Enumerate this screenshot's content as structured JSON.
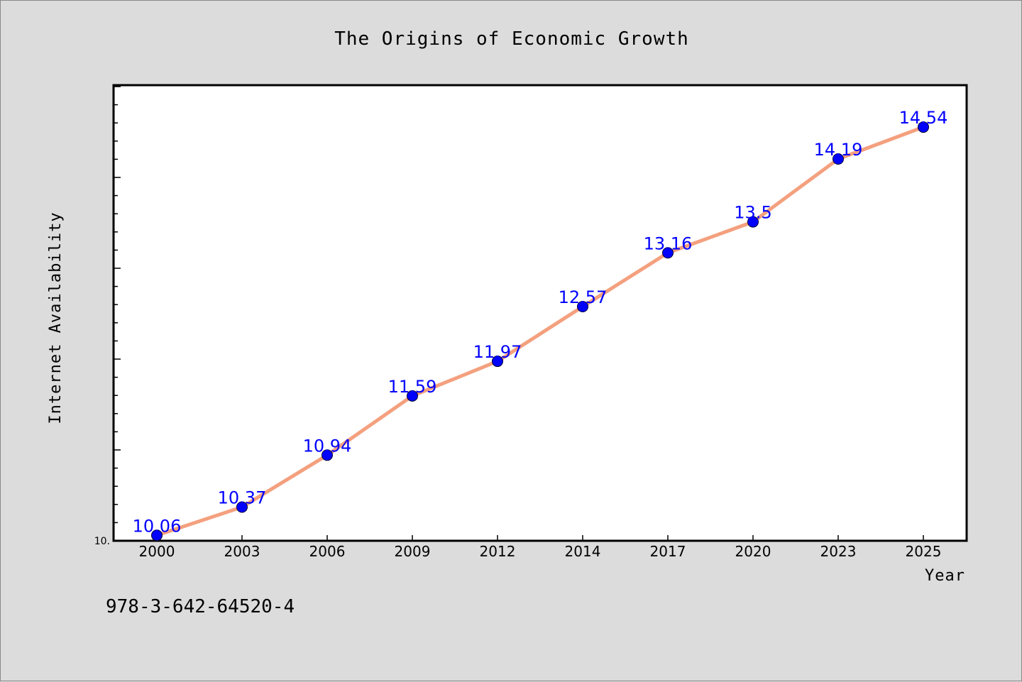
{
  "chart_data": {
    "type": "line",
    "title": "The Origins of Economic Growth",
    "xlabel": "Year",
    "ylabel": "Internet Availability",
    "x": [
      "2000",
      "2003",
      "2006",
      "2009",
      "2012",
      "2014",
      "2017",
      "2020",
      "2023",
      "2025"
    ],
    "values": [
      10.06,
      10.37,
      10.94,
      11.59,
      11.97,
      12.57,
      13.16,
      13.5,
      14.19,
      14.54
    ],
    "data_labels": [
      "10.06",
      "10.37",
      "10.94",
      "11.59",
      "11.97",
      "12.57",
      "13.16",
      "13.5",
      "14.19",
      "14.54"
    ],
    "ylim": [
      10.0,
      15.0
    ],
    "y_tick_label": "10.",
    "grid": false,
    "line_color": "#f4a07e",
    "marker_color": "#0000ff",
    "label_color": "#0000ff"
  },
  "footer": {
    "isbn": "978-3-642-64520-4"
  }
}
